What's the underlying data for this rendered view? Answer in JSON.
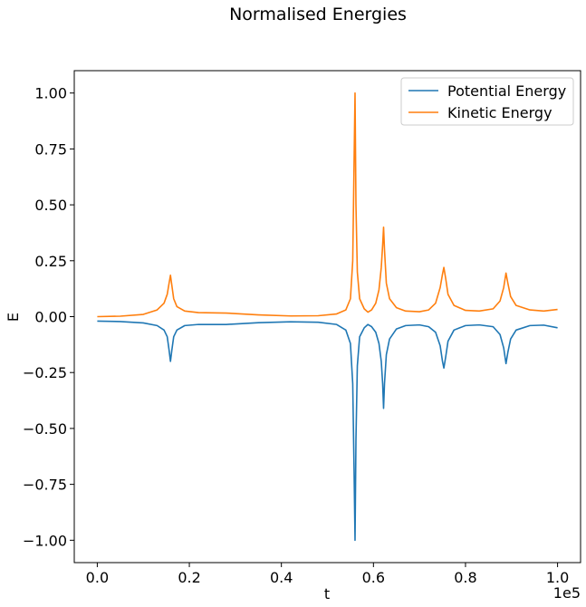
{
  "chart_data": {
    "type": "line",
    "title": "Normalised Energies",
    "xlabel": "t",
    "ylabel": "E",
    "x_offset_text": "1e5",
    "xlim": [
      -0.05,
      1.05
    ],
    "ylim": [
      -1.1,
      1.1
    ],
    "x_ticks": [
      0.0,
      0.2,
      0.4,
      0.6,
      0.8,
      1.0
    ],
    "x_tick_labels": [
      "0.0",
      "0.2",
      "0.4",
      "0.6",
      "0.8",
      "1.0"
    ],
    "y_ticks": [
      1.0,
      0.75,
      0.5,
      0.25,
      0.0,
      -0.25,
      -0.5,
      -0.75,
      -1.0
    ],
    "y_tick_labels": [
      "1.00",
      "0.75",
      "0.50",
      "0.25",
      "0.00",
      "−0.25",
      "−0.50",
      "−0.75",
      "−1.00"
    ],
    "grid": false,
    "legend_position": "top-right",
    "series": [
      {
        "name": "Potential Energy",
        "color": "#1f77b4",
        "points": [
          [
            0.0,
            -0.02
          ],
          [
            0.05,
            -0.022
          ],
          [
            0.1,
            -0.028
          ],
          [
            0.13,
            -0.04
          ],
          [
            0.145,
            -0.06
          ],
          [
            0.152,
            -0.09
          ],
          [
            0.156,
            -0.15
          ],
          [
            0.159,
            -0.2
          ],
          [
            0.162,
            -0.15
          ],
          [
            0.166,
            -0.09
          ],
          [
            0.173,
            -0.06
          ],
          [
            0.19,
            -0.04
          ],
          [
            0.22,
            -0.035
          ],
          [
            0.28,
            -0.035
          ],
          [
            0.35,
            -0.027
          ],
          [
            0.42,
            -0.023
          ],
          [
            0.48,
            -0.025
          ],
          [
            0.52,
            -0.035
          ],
          [
            0.54,
            -0.06
          ],
          [
            0.55,
            -0.12
          ],
          [
            0.555,
            -0.3
          ],
          [
            0.558,
            -0.7
          ],
          [
            0.56,
            -1.0
          ],
          [
            0.562,
            -0.55
          ],
          [
            0.565,
            -0.22
          ],
          [
            0.57,
            -0.09
          ],
          [
            0.58,
            -0.05
          ],
          [
            0.588,
            -0.035
          ],
          [
            0.596,
            -0.045
          ],
          [
            0.605,
            -0.07
          ],
          [
            0.612,
            -0.12
          ],
          [
            0.617,
            -0.2
          ],
          [
            0.62,
            -0.3
          ],
          [
            0.622,
            -0.41
          ],
          [
            0.624,
            -0.3
          ],
          [
            0.628,
            -0.17
          ],
          [
            0.635,
            -0.1
          ],
          [
            0.65,
            -0.055
          ],
          [
            0.67,
            -0.04
          ],
          [
            0.7,
            -0.037
          ],
          [
            0.72,
            -0.045
          ],
          [
            0.735,
            -0.07
          ],
          [
            0.745,
            -0.13
          ],
          [
            0.75,
            -0.2
          ],
          [
            0.753,
            -0.23
          ],
          [
            0.757,
            -0.18
          ],
          [
            0.762,
            -0.11
          ],
          [
            0.775,
            -0.06
          ],
          [
            0.8,
            -0.04
          ],
          [
            0.83,
            -0.037
          ],
          [
            0.86,
            -0.045
          ],
          [
            0.875,
            -0.08
          ],
          [
            0.883,
            -0.14
          ],
          [
            0.888,
            -0.21
          ],
          [
            0.892,
            -0.16
          ],
          [
            0.898,
            -0.1
          ],
          [
            0.91,
            -0.06
          ],
          [
            0.94,
            -0.04
          ],
          [
            0.97,
            -0.038
          ],
          [
            1.0,
            -0.05
          ]
        ]
      },
      {
        "name": "Kinetic Energy",
        "color": "#ff7f0e",
        "points": [
          [
            0.0,
            0.0
          ],
          [
            0.05,
            0.002
          ],
          [
            0.1,
            0.01
          ],
          [
            0.13,
            0.03
          ],
          [
            0.145,
            0.06
          ],
          [
            0.152,
            0.1
          ],
          [
            0.156,
            0.15
          ],
          [
            0.159,
            0.185
          ],
          [
            0.162,
            0.14
          ],
          [
            0.166,
            0.08
          ],
          [
            0.173,
            0.045
          ],
          [
            0.19,
            0.025
          ],
          [
            0.22,
            0.018
          ],
          [
            0.28,
            0.016
          ],
          [
            0.35,
            0.008
          ],
          [
            0.42,
            0.003
          ],
          [
            0.48,
            0.004
          ],
          [
            0.52,
            0.012
          ],
          [
            0.54,
            0.03
          ],
          [
            0.55,
            0.08
          ],
          [
            0.555,
            0.25
          ],
          [
            0.558,
            0.7
          ],
          [
            0.56,
            1.0
          ],
          [
            0.562,
            0.5
          ],
          [
            0.565,
            0.2
          ],
          [
            0.57,
            0.08
          ],
          [
            0.58,
            0.035
          ],
          [
            0.588,
            0.02
          ],
          [
            0.596,
            0.03
          ],
          [
            0.605,
            0.06
          ],
          [
            0.612,
            0.12
          ],
          [
            0.617,
            0.22
          ],
          [
            0.62,
            0.32
          ],
          [
            0.622,
            0.4
          ],
          [
            0.624,
            0.3
          ],
          [
            0.628,
            0.15
          ],
          [
            0.635,
            0.08
          ],
          [
            0.65,
            0.04
          ],
          [
            0.67,
            0.025
          ],
          [
            0.7,
            0.022
          ],
          [
            0.72,
            0.03
          ],
          [
            0.735,
            0.06
          ],
          [
            0.745,
            0.13
          ],
          [
            0.75,
            0.19
          ],
          [
            0.753,
            0.22
          ],
          [
            0.757,
            0.17
          ],
          [
            0.762,
            0.1
          ],
          [
            0.775,
            0.05
          ],
          [
            0.8,
            0.028
          ],
          [
            0.83,
            0.025
          ],
          [
            0.86,
            0.035
          ],
          [
            0.875,
            0.07
          ],
          [
            0.883,
            0.13
          ],
          [
            0.888,
            0.195
          ],
          [
            0.892,
            0.15
          ],
          [
            0.898,
            0.09
          ],
          [
            0.91,
            0.05
          ],
          [
            0.94,
            0.03
          ],
          [
            0.97,
            0.025
          ],
          [
            1.0,
            0.032
          ]
        ]
      }
    ]
  }
}
